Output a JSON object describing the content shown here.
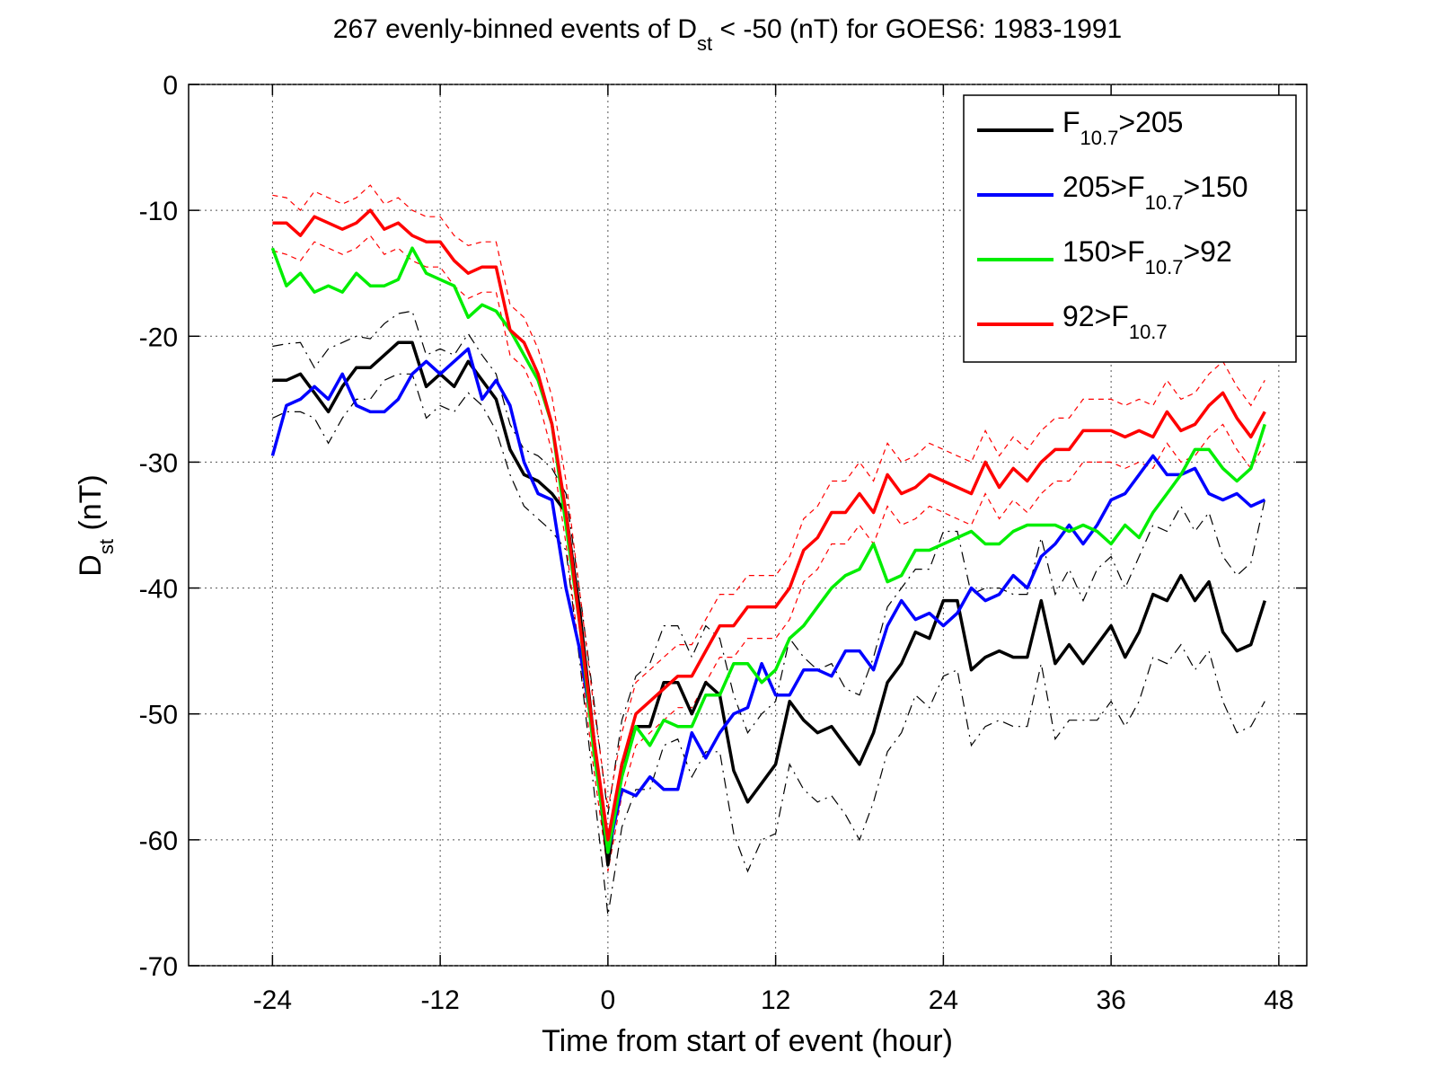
{
  "chart_data": {
    "type": "line",
    "title": {
      "prefix": "267 evenly-binned events of D",
      "sub": "st",
      "suffix": " < -50 (nT) for GOES6: 1983-1991"
    },
    "xlabel": "Time from start of event (hour)",
    "ylabel": {
      "main": "D",
      "sub": "st",
      "rest": " (nT)"
    },
    "xlim": [
      -30,
      50
    ],
    "ylim": [
      -70,
      0
    ],
    "xticks": [
      -24,
      -12,
      0,
      12,
      24,
      36,
      48
    ],
    "yticks": [
      0,
      -10,
      -20,
      -30,
      -40,
      -50,
      -60,
      -70
    ],
    "grid": true,
    "legend_position": "top-right",
    "x": [
      -24,
      -23,
      -22,
      -21,
      -20,
      -19,
      -18,
      -17,
      -16,
      -15,
      -14,
      -13,
      -12,
      -11,
      -10,
      -9,
      -8,
      -7,
      -6,
      -5,
      -4,
      -3,
      -2,
      -1,
      0,
      1,
      2,
      3,
      4,
      5,
      6,
      7,
      8,
      9,
      10,
      11,
      12,
      13,
      14,
      15,
      16,
      17,
      18,
      19,
      20,
      21,
      22,
      23,
      24,
      25,
      26,
      27,
      28,
      29,
      30,
      31,
      32,
      33,
      34,
      35,
      36,
      37,
      38,
      39,
      40,
      41,
      42,
      43,
      44,
      45,
      46,
      47
    ],
    "series": [
      {
        "legend": {
          "pre": "F",
          "sub": "10.7",
          "post": ">205"
        },
        "color": "#000000",
        "values": [
          -23.5,
          -23.5,
          -23,
          -24.5,
          -26,
          -24,
          -22.5,
          -22.5,
          -21.5,
          -20.5,
          -20.5,
          -24,
          -23,
          -24,
          -22,
          -23.5,
          -25,
          -29,
          -31,
          -31.5,
          -32.5,
          -34,
          -42,
          -52,
          -62,
          -54,
          -51,
          -51,
          -47.5,
          -47.5,
          -50,
          -47.5,
          -48.5,
          -54.5,
          -57,
          -55.5,
          -54,
          -49,
          -50.5,
          -51.5,
          -51,
          -52.5,
          -54,
          -51.5,
          -47.5,
          -46,
          -43.5,
          -44,
          -41,
          -41,
          -46.5,
          -45.5,
          -45,
          -45.5,
          -45.5,
          -41,
          -46,
          -44.5,
          -46,
          -44.5,
          -43,
          -45.5,
          -43.5,
          -40.5,
          -41,
          -39,
          -41,
          -39.5,
          -43.5,
          -45,
          -44.5,
          -41
        ]
      },
      {
        "legend": {
          "pre": "205>F",
          "sub": "10.7",
          "post": ">150"
        },
        "color": "#0000ff",
        "values": [
          -29.5,
          -25.5,
          -25,
          -24,
          -25,
          -23,
          -25.5,
          -26,
          -26,
          -25,
          -23,
          -22,
          -23,
          -22,
          -21,
          -25,
          -23.5,
          -25.5,
          -30,
          -32.5,
          -33,
          -40,
          -45,
          -52,
          -61,
          -56,
          -56.5,
          -55,
          -56,
          -56,
          -51.5,
          -53.5,
          -51.5,
          -50,
          -49.5,
          -46,
          -48.5,
          -48.5,
          -46.5,
          -46.5,
          -47,
          -45,
          -45,
          -46.5,
          -43,
          -41,
          -42.5,
          -42,
          -43,
          -42,
          -40,
          -41,
          -40.5,
          -39,
          -40,
          -37.5,
          -36.5,
          -35,
          -36.5,
          -35,
          -33,
          -32.5,
          -31,
          -29.5,
          -31,
          -31,
          -30.5,
          -32.5,
          -33,
          -32.5,
          -33.5,
          -33
        ]
      },
      {
        "legend": {
          "pre": "150>F",
          "sub": "10.7",
          "post": ">92"
        },
        "color": "#00ee00",
        "values": [
          -13,
          -16,
          -15,
          -16.5,
          -16,
          -16.5,
          -15,
          -16,
          -16,
          -15.5,
          -13,
          -15,
          -15.5,
          -16,
          -18.5,
          -17.5,
          -18,
          -19.5,
          -21.5,
          -23.5,
          -27,
          -35,
          -43,
          -53,
          -61,
          -55,
          -51,
          -52.5,
          -50.5,
          -51,
          -51,
          -48.5,
          -48.5,
          -46,
          -46,
          -47.5,
          -46.5,
          -44,
          -43,
          -41.5,
          -40,
          -39,
          -38.5,
          -36.5,
          -39.5,
          -39,
          -37,
          -37,
          -36.5,
          -36,
          -35.5,
          -36.5,
          -36.5,
          -35.5,
          -35,
          -35,
          -35,
          -35.5,
          -35,
          -35.5,
          -36.5,
          -35,
          -36,
          -34,
          -32.5,
          -31,
          -29,
          -29,
          -30.5,
          -31.5,
          -30.5,
          -27
        ]
      },
      {
        "legend": {
          "pre": "92>F",
          "sub": "10.7",
          "post": ""
        },
        "color": "#ff0000",
        "values": [
          -11,
          -11,
          -12,
          -10.5,
          -11,
          -11.5,
          -11,
          -10,
          -11.5,
          -11,
          -12,
          -12.5,
          -12.5,
          -14,
          -15,
          -14.5,
          -14.5,
          -19.5,
          -20.5,
          -23,
          -27,
          -34,
          -43,
          -52,
          -60,
          -54,
          -50,
          -49,
          -48,
          -47,
          -47,
          -45,
          -43,
          -43,
          -41.5,
          -41.5,
          -41.5,
          -40,
          -37,
          -36,
          -34,
          -34,
          -32.5,
          -34,
          -31,
          -32.5,
          -32,
          -31,
          -31.5,
          -32,
          -32.5,
          -30,
          -32,
          -30.5,
          -31.5,
          -30,
          -29,
          -29,
          -27.5,
          -27.5,
          -27.5,
          -28,
          -27.5,
          -28,
          -26,
          -27.5,
          -27,
          -25.5,
          -24.5,
          -26.5,
          -28,
          -26
        ]
      }
    ],
    "bounds": [
      {
        "color": "#000000",
        "dash": "12 6 2 6",
        "upper": [
          -20.8,
          -20.6,
          -20.5,
          -22.5,
          -21,
          -20.5,
          -20,
          -20.2,
          -19,
          -18.2,
          -18,
          -21.5,
          -21,
          -21.5,
          -19.8,
          -21.5,
          -23,
          -27,
          -29,
          -29.5,
          -30.5,
          -32.5,
          -40.5,
          -49,
          -58,
          -50.5,
          -47,
          -46,
          -43,
          -43,
          -45.5,
          -43,
          -44,
          -48.5,
          -51.5,
          -50,
          -49,
          -44,
          -45.5,
          -46.5,
          -46,
          -48,
          -48.5,
          -45.5,
          -41.5,
          -40,
          -38.5,
          -38.5,
          -35.5,
          -35.5,
          -40.5,
          -40,
          -40,
          -40.5,
          -40.5,
          -36,
          -40.5,
          -38.5,
          -41,
          -38.5,
          -37.5,
          -40,
          -37.5,
          -35,
          -35.5,
          -33.5,
          -35.5,
          -34,
          -37.5,
          -39,
          -38,
          -33
        ],
        "lower": [
          -26.5,
          -26,
          -26,
          -26.5,
          -28.5,
          -26.5,
          -25,
          -25,
          -23.5,
          -23,
          -23,
          -26.5,
          -25.5,
          -26,
          -24.5,
          -25.5,
          -27.5,
          -31,
          -33.5,
          -34.5,
          -35.5,
          -37,
          -46,
          -56,
          -66,
          -59,
          -56,
          -56,
          -52.5,
          -52,
          -55,
          -53,
          -53,
          -59.5,
          -62.5,
          -60,
          -59.5,
          -54,
          -56,
          -57,
          -56.5,
          -58,
          -60,
          -57,
          -53,
          -51.5,
          -48.5,
          -49.5,
          -47,
          -46.5,
          -52.5,
          -51,
          -50.5,
          -51,
          -51,
          -46,
          -52,
          -50.5,
          -50.5,
          -50.5,
          -49,
          -51,
          -49,
          -45.5,
          -46,
          -44.5,
          -46.5,
          -45,
          -49,
          -51.5,
          -51,
          -49
        ]
      },
      {
        "color": "#ff0000",
        "dash": "6 5",
        "upper": [
          -8.8,
          -9,
          -10,
          -8.5,
          -9,
          -9.5,
          -9,
          -8,
          -9.5,
          -9,
          -10,
          -10.5,
          -10.5,
          -12,
          -12.8,
          -12.5,
          -12.5,
          -17.5,
          -18.5,
          -21,
          -24.8,
          -31.5,
          -40.5,
          -49.5,
          -57.5,
          -51.5,
          -47.5,
          -46.5,
          -45.5,
          -44.5,
          -44.5,
          -42.5,
          -40.5,
          -40.5,
          -39,
          -39,
          -39,
          -37.5,
          -34.5,
          -33.5,
          -31.5,
          -31.5,
          -30,
          -31.5,
          -28.5,
          -30,
          -29.5,
          -28.5,
          -29,
          -29.5,
          -30,
          -27.5,
          -29.5,
          -28,
          -29,
          -27.5,
          -26.5,
          -26.5,
          -25,
          -25,
          -25,
          -25.5,
          -25,
          -25.5,
          -23.5,
          -25,
          -24.5,
          -23,
          -22,
          -24,
          -25.5,
          -23.5
        ],
        "lower": [
          -13.2,
          -13.5,
          -14,
          -12.5,
          -13,
          -13.5,
          -13,
          -12,
          -13.5,
          -13,
          -14,
          -14.5,
          -14.5,
          -16,
          -17,
          -16.5,
          -16.5,
          -21.5,
          -22.5,
          -25,
          -29.2,
          -36.5,
          -45.5,
          -54.5,
          -62.5,
          -56.5,
          -52.5,
          -51.5,
          -50.5,
          -49.5,
          -49.5,
          -47.5,
          -45.5,
          -45.5,
          -44,
          -44,
          -44,
          -42.5,
          -39.5,
          -38.5,
          -36.5,
          -36.5,
          -35,
          -36.5,
          -33.5,
          -35,
          -34.5,
          -33.5,
          -34,
          -34.5,
          -35,
          -32.5,
          -34.5,
          -33,
          -34,
          -32.5,
          -31.5,
          -31.5,
          -30,
          -30,
          -30,
          -30.5,
          -30,
          -30.5,
          -28.5,
          -30,
          -29.5,
          -28,
          -27,
          -29,
          -30.5,
          -28.5
        ]
      }
    ]
  }
}
